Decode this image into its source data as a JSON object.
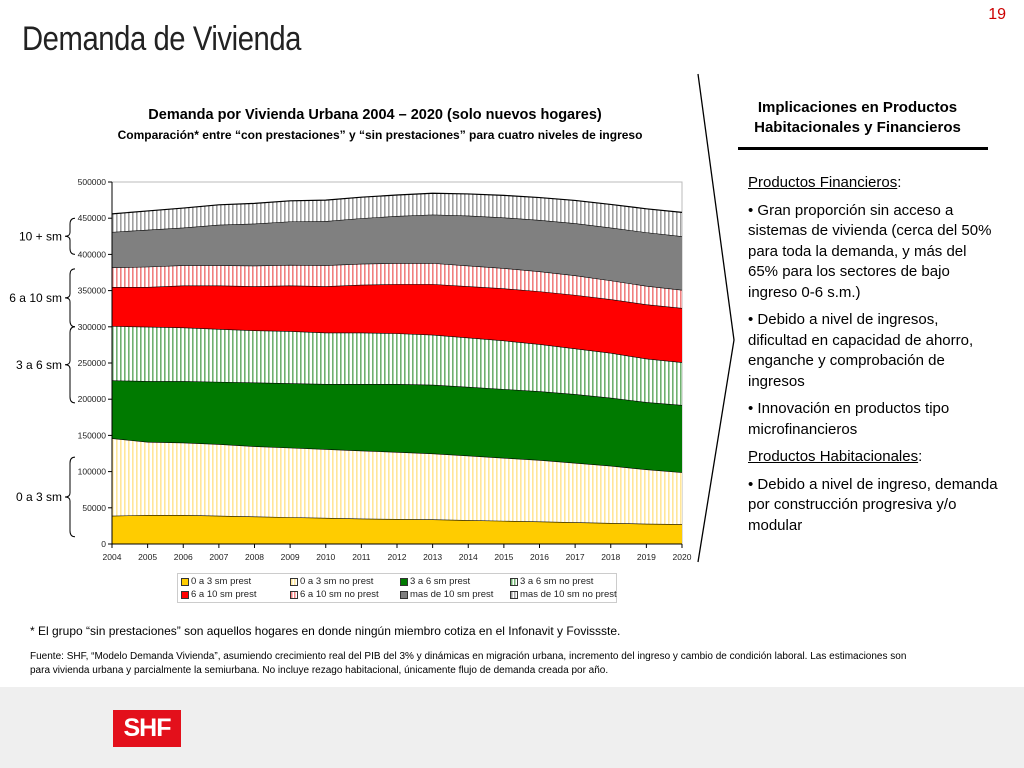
{
  "page": {
    "number": "19",
    "title": "Demanda de Vivienda"
  },
  "brackets": [
    {
      "label": "10 + sm",
      "from": 400000,
      "to": 450000
    },
    {
      "label": "6 a 10 sm",
      "from": 300000,
      "to": 380000
    },
    {
      "label": "3 a 6 sm",
      "from": 195000,
      "to": 300000
    },
    {
      "label": "0 a 3 sm",
      "from": 10000,
      "to": 120000
    }
  ],
  "chart_data": {
    "type": "area",
    "stacked": true,
    "title": "Demanda por Vivienda Urbana 2004 – 2020 (solo nuevos hogares)",
    "subtitle": "Comparación* entre “con prestaciones” y “sin prestaciones” para cuatro niveles de ingreso",
    "xlabel": "",
    "ylabel": "",
    "ylim": [
      0,
      500000
    ],
    "yticks": [
      0,
      50000,
      100000,
      150000,
      200000,
      250000,
      300000,
      350000,
      400000,
      450000,
      500000
    ],
    "ytick_labels": [
      "0",
      "50000",
      "100000",
      "150000",
      "200000",
      "250000",
      "300000",
      "350000",
      "400000",
      "450000",
      "500000"
    ],
    "legend_position": "bottom",
    "x": [
      "2004",
      "2005",
      "2006",
      "2007",
      "2008",
      "2009",
      "2010",
      "2011",
      "2012",
      "2013",
      "2014",
      "2015",
      "2016",
      "2017",
      "2018",
      "2019",
      "2020"
    ],
    "series": [
      {
        "name": "0 a 3 sm prest",
        "color": "#ffcc00",
        "pattern": "solid",
        "values": [
          39000,
          40000,
          40000,
          39000,
          38000,
          37000,
          36000,
          35000,
          34500,
          34000,
          33000,
          32000,
          31000,
          30000,
          29000,
          28000,
          27500
        ]
      },
      {
        "name": "0 a 3 sm no prest",
        "color": "#ffe699",
        "pattern": "vstripe",
        "values": [
          107000,
          101000,
          100000,
          99000,
          97000,
          96000,
          95000,
          94000,
          92500,
          91000,
          89000,
          87000,
          85000,
          82000,
          79000,
          75000,
          71500
        ]
      },
      {
        "name": "3 a 6 sm prest",
        "color": "#007a00",
        "pattern": "solid",
        "values": [
          80000,
          84000,
          85000,
          86000,
          88000,
          89000,
          90000,
          92000,
          94000,
          95000,
          95000,
          95000,
          95000,
          95000,
          94000,
          93000,
          93000
        ]
      },
      {
        "name": "3 a 6 sm no prest",
        "color": "#70b070",
        "pattern": "vstripe",
        "values": [
          75000,
          75000,
          74000,
          73000,
          72000,
          72000,
          71000,
          71000,
          70000,
          69000,
          68000,
          67000,
          65000,
          63000,
          62000,
          60000,
          59000
        ]
      },
      {
        "name": "6 a 10 sm prest",
        "color": "#ff0000",
        "pattern": "solid",
        "values": [
          54000,
          55000,
          58000,
          60000,
          61000,
          63000,
          64000,
          66000,
          68000,
          70000,
          71000,
          72000,
          73000,
          74000,
          74000,
          75000,
          75000
        ]
      },
      {
        "name": "6 a 10 sm no prest",
        "color": "#f08080",
        "pattern": "vstripe",
        "values": [
          27000,
          28000,
          28000,
          28000,
          28500,
          28500,
          29000,
          29000,
          29000,
          29000,
          28500,
          28000,
          27500,
          27000,
          26000,
          25500,
          25000
        ]
      },
      {
        "name": "mas de 10 sm prest",
        "color": "#808080",
        "pattern": "solid",
        "values": [
          49000,
          51000,
          52000,
          56000,
          58000,
          60000,
          61000,
          63000,
          65000,
          67000,
          69000,
          70000,
          71000,
          72000,
          73000,
          74000,
          74000
        ]
      },
      {
        "name": "mas de 10 sm no prest",
        "color": "#a0a0a0",
        "pattern": "vstripe",
        "values": [
          25000,
          26000,
          27000,
          27500,
          28000,
          28500,
          29000,
          29000,
          29000,
          29500,
          30000,
          30500,
          31000,
          31500,
          32000,
          32500,
          33000
        ]
      }
    ]
  },
  "right_panel": {
    "heading_line1": "Implicaciones en Productos",
    "heading_line2": "Habitacionales y Financieros",
    "section1_title": "Productos Financieros",
    "section1_bullets": [
      "• Gran proporción sin acceso a sistemas de vivienda (cerca del 50% para toda la demanda, y más del 65% para los sectores de bajo ingreso 0-6 s.m.)",
      "• Debido a nivel de ingresos, dificultad en capacidad de ahorro, enganche y comprobación de ingresos",
      "• Innovación en productos tipo microfinancieros"
    ],
    "section2_title": "Productos Habitacionales",
    "section2_bullets": [
      "• Debido a nivel de ingreso, demanda por construcción progresiva y/o modular"
    ],
    "colon": ":"
  },
  "footnote": "* El grupo “sin prestaciones” son aquellos hogares en donde ningún miembro cotiza en el Infonavit y Fovissste.",
  "source": "Fuente: SHF, “Modelo Demanda Vivienda”, asumiendo crecimiento real del PIB del 3% y dinámicas en migración urbana, incremento del ingreso y cambio de condición laboral. Las estimaciones son para vivienda urbana y parcialmente la semiurbana. No incluye rezago habitacional, únicamente flujo de demanda creada por año.",
  "footer": {
    "logo_text": "SHF"
  }
}
